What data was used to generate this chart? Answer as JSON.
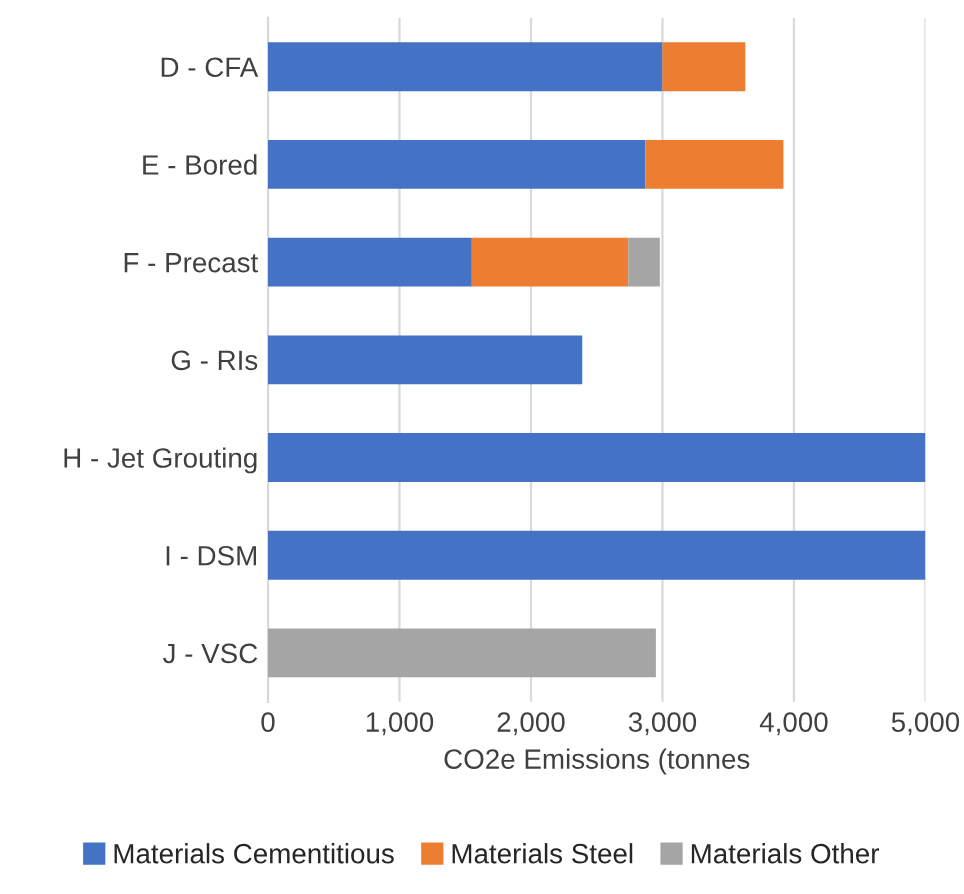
{
  "chart_data": {
    "type": "bar",
    "orientation": "horizontal",
    "stacked": true,
    "categories": [
      "D - CFA",
      "E - Bored",
      "F - Precast",
      "G - RIs",
      "H - Jet Grouting",
      "I - DSM",
      "J - VSC"
    ],
    "series": [
      {
        "name": "Materials Cementitious",
        "color": "#4472c4",
        "values": [
          3000,
          2870,
          1550,
          2390,
          5000,
          5000,
          null
        ]
      },
      {
        "name": "Materials Steel",
        "color": "#ed7d31",
        "values": [
          630,
          1050,
          1190,
          null,
          null,
          null,
          null
        ]
      },
      {
        "name": "Materials Other",
        "color": "#a5a5a5",
        "values": [
          null,
          null,
          240,
          null,
          null,
          null,
          2950
        ]
      }
    ],
    "xlabel": "CO2e Emissions (tonnes",
    "xlim": [
      0,
      5000
    ],
    "xticks": [
      0,
      {
        "value": 1000,
        "label": "1,000"
      },
      {
        "value": 2000,
        "label": "2,000"
      },
      {
        "value": 3000,
        "label": "3,000"
      },
      {
        "value": 4000,
        "label": "4,000"
      },
      {
        "value": 5000,
        "label": "5,000"
      }
    ],
    "grid": "x",
    "legend": "bottom"
  }
}
